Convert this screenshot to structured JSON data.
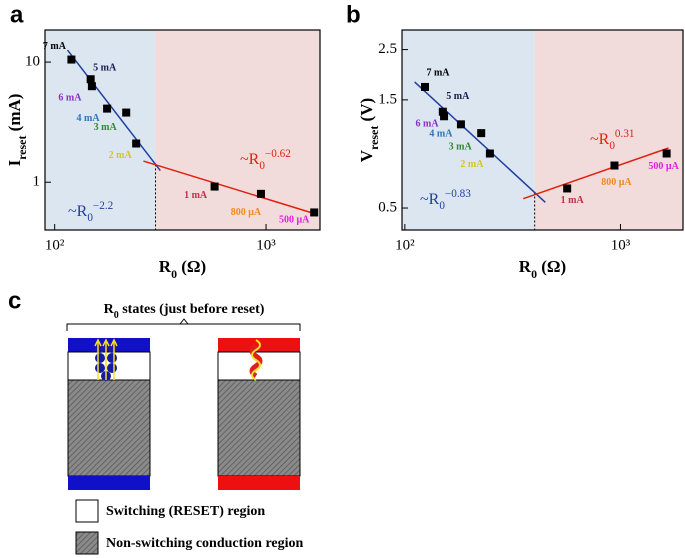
{
  "panel_labels": [
    "a",
    "b",
    "c"
  ],
  "chart_data": [
    {
      "type": "scatter",
      "xscale": "log",
      "yscale": "log",
      "xlabel": [
        "R",
        "0",
        " (Ω)"
      ],
      "ylabel": [
        "I",
        "reset",
        "  (mA)"
      ],
      "xlim": [
        90,
        1800
      ],
      "ylim": [
        0.4,
        18.5
      ],
      "xticks": [
        {
          "value": 100,
          "label": "10²"
        },
        {
          "value": 1000,
          "label": "10³"
        }
      ],
      "yticks": [
        1,
        10
      ],
      "regions": [
        {
          "xlim": [
            90,
            300
          ],
          "color": "#dce6f1"
        },
        {
          "xlim": [
            300,
            1800
          ],
          "color": "#f2dcdb"
        }
      ],
      "vline": 300,
      "series": [
        {
          "color": "#000000",
          "x": [
            120,
            148,
            150,
            177,
            218,
            243,
            571,
            946,
            1690
          ],
          "values": [
            10.5,
            7.2,
            6.3,
            4.1,
            3.8,
            2.1,
            0.92,
            0.8,
            0.56
          ]
        }
      ],
      "point_labels": [
        "7 mA",
        "5 mA",
        "6 mA",
        "4 mA",
        "3 mA",
        "2 mA",
        "1 mA",
        "800 μA",
        "500 μA"
      ],
      "label_colors": [
        "#000000",
        "#1a1a4e",
        "#8b2fc9",
        "#2e75b6",
        "#2e8b2e",
        "#d4c42a",
        "#c0304a",
        "#f08a1e",
        "#e020e0"
      ],
      "fits": [
        {
          "color": "#1f3fa0",
          "x": [
            115,
            316
          ],
          "y": [
            12.6,
            1.25
          ]
        },
        {
          "color": "#e02010",
          "x": [
            263,
            1680
          ],
          "y": [
            1.5,
            0.55
          ]
        }
      ],
      "annotations": [
        {
          "text": [
            "~R",
            "0",
            "−0.62"
          ],
          "color": "#e02010"
        },
        {
          "text": [
            "~R",
            "0",
            "−2.2"
          ],
          "color": "#1f3fa0"
        }
      ]
    },
    {
      "type": "scatter",
      "xscale": "log",
      "yscale": "log",
      "xlabel": [
        "R",
        "0",
        " (Ω)"
      ],
      "ylabel": [
        "V",
        "reset",
        "  (V)"
      ],
      "xlim": [
        97,
        1950
      ],
      "ylim": [
        0.4,
        3.05
      ],
      "xticks": [
        {
          "value": 100,
          "label": "10²"
        },
        {
          "value": 1000,
          "label": "10³"
        }
      ],
      "yticks": [
        0.5,
        1.5,
        2.5
      ],
      "regions": [
        {
          "xlim": [
            97,
            400
          ],
          "color": "#dce6f1"
        },
        {
          "xlim": [
            400,
            1950
          ],
          "color": "#f2dcdb"
        }
      ],
      "vline": 400,
      "series": [
        {
          "color": "#000000",
          "x": [
            124,
            150,
            152,
            182,
            226,
            248,
            566,
            938,
            1637
          ],
          "values": [
            1.71,
            1.33,
            1.27,
            1.17,
            1.07,
            0.87,
            0.61,
            0.77,
            0.87
          ]
        }
      ],
      "point_labels": [
        "7 mA",
        "5 mA",
        "6 mA",
        "4 mA",
        "3 mA",
        "2 mA",
        "1 mA",
        "800 μA",
        "500 μA"
      ],
      "label_colors": [
        "#000000",
        "#1a1a4e",
        "#8b2fc9",
        "#2e75b6",
        "#2e8b2e",
        "#d4c42a",
        "#c0304a",
        "#f08a1e",
        "#e020e0"
      ],
      "fits": [
        {
          "color": "#1f3fa0",
          "x": [
            111,
            448
          ],
          "y": [
            1.8,
            0.53
          ]
        },
        {
          "color": "#e02010",
          "x": [
            354,
            1670
          ],
          "y": [
            0.55,
            0.92
          ]
        }
      ],
      "annotations": [
        {
          "text": [
            "~R",
            "0",
            "0.31"
          ],
          "color": "#e02010"
        },
        {
          "text": [
            "~R",
            "0",
            "−0.83"
          ],
          "color": "#1f3fa0"
        }
      ]
    }
  ],
  "diagram": {
    "title": [
      "R",
      "0",
      " states (just before reset)"
    ],
    "legend": [
      "Switching (RESET) region",
      "Non-switching conduction region"
    ]
  }
}
